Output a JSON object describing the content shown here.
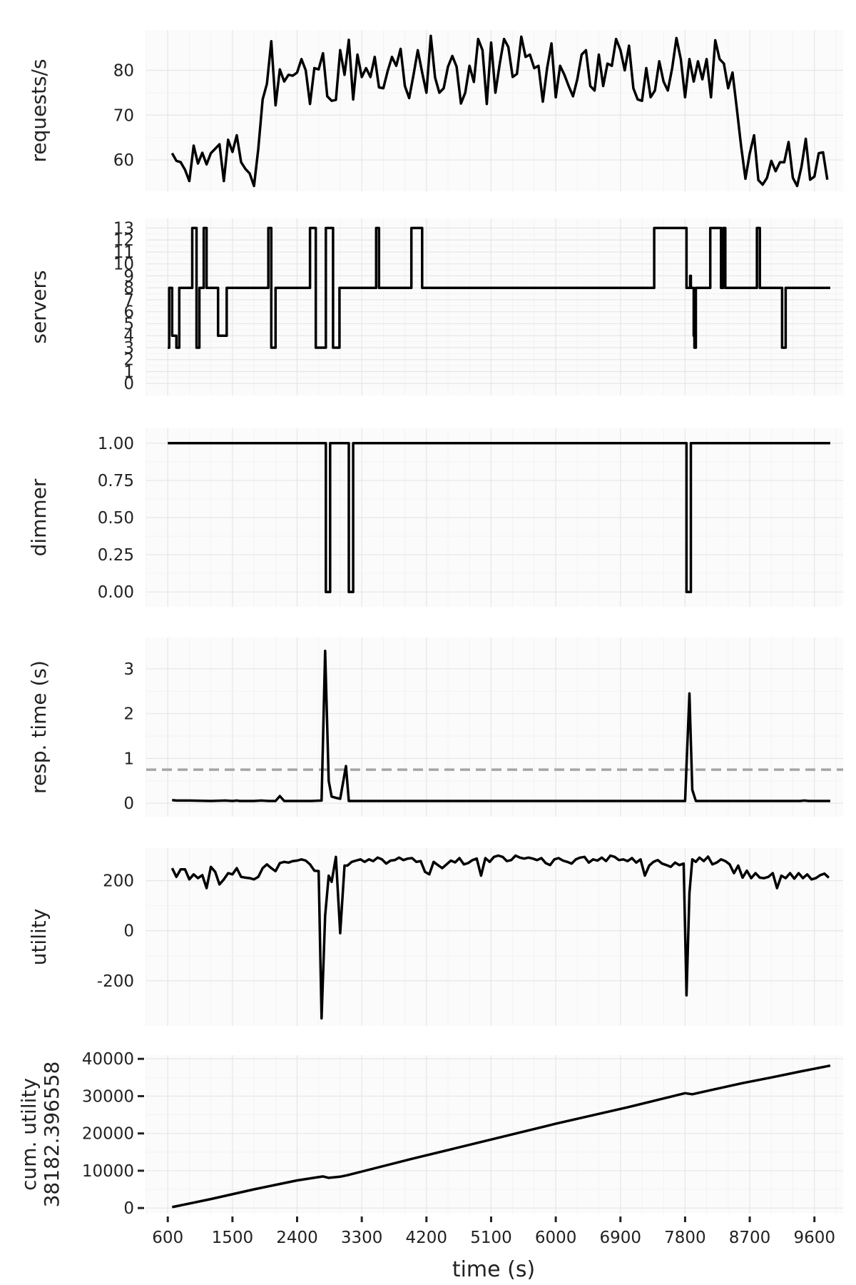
{
  "chart_data": {
    "type": "line",
    "xlabel": "time (s)",
    "x_ticks": [
      600,
      1500,
      2400,
      3300,
      4200,
      5100,
      6000,
      6900,
      7800,
      8700,
      9600
    ],
    "xlim": [
      300,
      10000
    ],
    "panels": [
      {
        "id": "requests",
        "ylabel": "requests/s",
        "ylim": [
          53,
          89
        ],
        "y_ticks": [
          60,
          70,
          80
        ],
        "y_tick_labels": [
          "60",
          "70",
          "80"
        ],
        "step": false,
        "x": [
          660,
          720,
          780,
          840,
          900,
          960,
          1020,
          1080,
          1140,
          1200,
          1260,
          1320,
          1380,
          1440,
          1500,
          1560,
          1620,
          1680,
          1740,
          1800,
          1860,
          1920,
          1980,
          2040,
          2100,
          2160,
          2220,
          2280,
          2340,
          2400,
          2460,
          2520,
          2580,
          2640,
          2700,
          2760,
          2820,
          2880,
          2940,
          3000,
          3060,
          3120,
          3180,
          3240,
          3300,
          3360,
          3420,
          3480,
          3540,
          3600,
          3660,
          3720,
          3780,
          3840,
          3900,
          3960,
          4020,
          4080,
          4140,
          4200,
          4260,
          4320,
          4380,
          4440,
          4500,
          4560,
          4620,
          4680,
          4740,
          4800,
          4860,
          4920,
          4980,
          5040,
          5100,
          5160,
          5220,
          5280,
          5340,
          5400,
          5460,
          5520,
          5580,
          5640,
          5700,
          5760,
          5820,
          5880,
          5940,
          6000,
          6060,
          6120,
          6180,
          6240,
          6300,
          6360,
          6420,
          6480,
          6540,
          6600,
          6660,
          6720,
          6780,
          6840,
          6900,
          6960,
          7020,
          7080,
          7140,
          7200,
          7260,
          7320,
          7380,
          7440,
          7500,
          7560,
          7620,
          7680,
          7740,
          7800,
          7860,
          7920,
          7980,
          8040,
          8100,
          8160,
          8220,
          8280,
          8340,
          8400,
          8460,
          8520,
          8580,
          8640,
          8700,
          8760,
          8820,
          8880,
          8940,
          9000,
          9060,
          9120,
          9180,
          9240,
          9300,
          9360,
          9420,
          9480,
          9540,
          9600,
          9660,
          9720,
          9780
        ],
        "values": [
          61.5,
          59.8,
          59.5,
          57.8,
          55.3,
          63.2,
          59.2,
          61.6,
          59.0,
          61.5,
          62.5,
          63.5,
          55.3,
          64.5,
          61.8,
          65.5,
          59.5,
          58.0,
          57.0,
          54.2,
          62.5,
          73.5,
          77.0,
          86.5,
          72.2,
          80.2,
          77.5,
          79.0,
          78.8,
          79.5,
          82.5,
          80.0,
          72.5,
          80.5,
          80.2,
          83.8,
          74.2,
          73.2,
          73.4,
          84.5,
          79.0,
          86.8,
          73.5,
          83.5,
          78.5,
          80.5,
          78.5,
          83.0,
          76.2,
          76.0,
          79.8,
          83.0,
          81.0,
          84.8,
          76.5,
          73.8,
          79.0,
          84.5,
          79.5,
          75.0,
          87.7,
          78.4,
          75.0,
          76.0,
          80.8,
          83.2,
          80.8,
          72.6,
          75.0,
          81.0,
          77.4,
          87.0,
          84.5,
          72.5,
          86.2,
          75.0,
          81.5,
          87.0,
          85.2,
          78.5,
          79.2,
          87.5,
          83.0,
          83.5,
          80.5,
          81.0,
          73.0,
          80.5,
          86.0,
          74.0,
          81.0,
          79.0,
          76.5,
          74.2,
          78.0,
          83.5,
          84.5,
          76.5,
          75.5,
          83.5,
          76.5,
          81.5,
          81.0,
          87.0,
          84.5,
          80.0,
          85.5,
          76.0,
          73.5,
          73.2,
          80.5,
          74.0,
          75.5,
          82.0,
          77.5,
          75.5,
          80.5,
          87.2,
          82.5,
          74.0,
          82.5,
          77.5,
          82.0,
          78.0,
          82.5,
          74.0,
          86.7,
          82.5,
          81.5,
          76.0,
          79.5,
          71.5,
          63.0,
          55.8,
          61.5,
          65.5,
          55.5,
          54.5,
          56.0,
          59.8,
          57.5,
          59.5,
          59.5,
          64.0,
          56.0,
          54.2,
          58.5,
          64.7,
          55.6,
          56.3,
          61.5,
          61.7,
          55.6
        ]
      },
      {
        "id": "servers",
        "ylabel": "servers",
        "ylim": [
          -1,
          13.8
        ],
        "y_ticks": [
          0,
          1,
          2,
          3,
          4,
          5,
          6,
          7,
          8,
          9,
          10,
          11,
          12,
          13
        ],
        "y_tick_labels": [
          "0",
          "1",
          "2",
          "3",
          "4",
          "5",
          "6",
          "7",
          "8",
          "9",
          "10",
          "11",
          "12",
          "13"
        ],
        "step": true,
        "x": [
          600,
          620,
          660,
          720,
          760,
          800,
          940,
          1000,
          1040,
          1100,
          1140,
          1180,
          1260,
          1300,
          1420,
          1460,
          1520,
          1820,
          1960,
          2000,
          2040,
          2100,
          2220,
          2300,
          2580,
          2660,
          2700,
          2720,
          2800,
          2900,
          2940,
          2990,
          3000,
          3050,
          3120,
          3200,
          3500,
          3540,
          3580,
          3590,
          3970,
          3990,
          4140,
          4200,
          4220,
          4290,
          4520,
          4580,
          5100,
          5160,
          5170,
          7320,
          7370,
          7820,
          7870,
          7880,
          7920,
          7930,
          7950,
          7990,
          8020,
          8060,
          8070,
          8120,
          8150,
          8300,
          8330,
          8360,
          8400,
          8440,
          8480,
          8500,
          8520,
          8560,
          8580,
          8600,
          8800,
          8840,
          8860,
          8870,
          9000,
          9040,
          9080,
          9100,
          9150,
          9200,
          9240,
          9260,
          9280,
          9290,
          9730,
          9820
        ],
        "values": [
          3,
          8,
          4,
          3,
          8,
          8,
          13,
          3,
          8,
          13,
          8,
          8,
          8,
          4,
          8,
          8,
          8,
          8,
          8,
          13,
          3,
          8,
          8,
          8,
          13,
          3,
          3,
          3,
          13,
          3,
          3,
          8,
          8,
          8,
          8,
          8,
          13,
          8,
          8,
          8,
          8,
          13,
          8,
          8,
          8,
          8,
          8,
          8,
          8,
          8,
          8,
          8,
          13,
          8,
          9,
          8,
          4,
          3,
          8,
          8,
          8,
          8,
          8,
          8,
          13,
          8,
          13,
          8,
          8,
          8,
          8,
          8,
          8,
          8,
          8,
          8,
          13,
          8,
          8,
          8,
          8,
          8,
          8,
          8,
          3,
          8,
          8,
          8,
          8,
          8,
          8,
          8
        ]
      },
      {
        "id": "dimmer",
        "ylabel": "dimmer",
        "ylim": [
          -0.1,
          1.1
        ],
        "y_ticks": [
          0,
          0.25,
          0.5,
          0.75,
          1.0
        ],
        "y_tick_labels": [
          "0.00",
          "0.25",
          "0.50",
          "0.75",
          "1.00"
        ],
        "step": true,
        "x": [
          600,
          2800,
          2860,
          3120,
          3180,
          7820,
          7880,
          9820
        ],
        "values": [
          1,
          0,
          1,
          0,
          1,
          0,
          1,
          1
        ]
      },
      {
        "id": "resp",
        "ylabel": "resp. time (s)",
        "ylim": [
          -0.3,
          3.7
        ],
        "y_ticks": [
          0,
          1,
          2,
          3
        ],
        "y_tick_labels": [
          "0",
          "1",
          "2",
          "3"
        ],
        "step": false,
        "threshold": 0.75,
        "x": [
          660,
          720,
          900,
          1200,
          1400,
          1500,
          1560,
          1600,
          1700,
          1800,
          1900,
          2000,
          2100,
          2160,
          2220,
          2400,
          2600,
          2740,
          2790,
          2840,
          2880,
          2940,
          3000,
          3080,
          3120,
          3160,
          4000,
          5000,
          6000,
          7000,
          7700,
          7800,
          7860,
          7900,
          7950,
          8200,
          9000,
          9400,
          9460,
          9520,
          9820
        ],
        "values": [
          0.07,
          0.06,
          0.06,
          0.05,
          0.06,
          0.05,
          0.06,
          0.05,
          0.05,
          0.05,
          0.06,
          0.05,
          0.05,
          0.16,
          0.05,
          0.05,
          0.05,
          0.06,
          3.4,
          0.5,
          0.15,
          0.12,
          0.1,
          0.83,
          0.05,
          0.05,
          0.05,
          0.05,
          0.05,
          0.05,
          0.05,
          0.05,
          2.45,
          0.3,
          0.05,
          0.05,
          0.05,
          0.05,
          0.06,
          0.05,
          0.05
        ]
      },
      {
        "id": "utility",
        "ylabel": "utility",
        "ylim": [
          -380,
          330
        ],
        "y_ticks": [
          -200,
          0,
          200
        ],
        "y_tick_labels": [
          "-200",
          "0",
          "200"
        ],
        "step": false,
        "x": [
          660,
          720,
          780,
          840,
          900,
          960,
          1020,
          1080,
          1140,
          1200,
          1260,
          1320,
          1380,
          1440,
          1500,
          1560,
          1620,
          1680,
          1740,
          1800,
          1860,
          1920,
          1980,
          2040,
          2100,
          2160,
          2220,
          2280,
          2340,
          2400,
          2460,
          2520,
          2580,
          2640,
          2700,
          2740,
          2790,
          2840,
          2880,
          2940,
          3000,
          3060,
          3100,
          3160,
          3220,
          3280,
          3340,
          3400,
          3460,
          3520,
          3580,
          3640,
          3700,
          3760,
          3820,
          3880,
          3940,
          4000,
          4060,
          4120,
          4180,
          4240,
          4300,
          4360,
          4420,
          4480,
          4540,
          4600,
          4660,
          4720,
          4780,
          4840,
          4900,
          4960,
          5020,
          5080,
          5140,
          5200,
          5260,
          5320,
          5380,
          5440,
          5500,
          5560,
          5620,
          5680,
          5740,
          5800,
          5860,
          5920,
          5980,
          6040,
          6100,
          6160,
          6220,
          6280,
          6340,
          6400,
          6460,
          6520,
          6580,
          6640,
          6700,
          6760,
          6820,
          6880,
          6940,
          7000,
          7060,
          7120,
          7180,
          7240,
          7300,
          7360,
          7420,
          7480,
          7540,
          7600,
          7660,
          7720,
          7780,
          7820,
          7860,
          7900,
          7950,
          8000,
          8060,
          8120,
          8180,
          8240,
          8300,
          8360,
          8420,
          8480,
          8540,
          8600,
          8660,
          8720,
          8780,
          8840,
          8900,
          8960,
          9020,
          9080,
          9140,
          9200,
          9260,
          9320,
          9380,
          9440,
          9500,
          9560,
          9620,
          9680,
          9740,
          9800
        ],
        "values": [
          250,
          215,
          245,
          245,
          205,
          225,
          210,
          222,
          170,
          255,
          235,
          185,
          205,
          230,
          225,
          250,
          215,
          212,
          210,
          205,
          215,
          250,
          265,
          250,
          238,
          270,
          275,
          272,
          278,
          280,
          285,
          280,
          265,
          240,
          238,
          -350,
          60,
          220,
          195,
          295,
          -10,
          260,
          260,
          275,
          280,
          285,
          275,
          285,
          278,
          292,
          285,
          268,
          280,
          282,
          292,
          282,
          288,
          290,
          275,
          278,
          235,
          225,
          275,
          262,
          250,
          265,
          280,
          273,
          290,
          265,
          270,
          282,
          288,
          220,
          290,
          275,
          295,
          300,
          295,
          278,
          282,
          300,
          292,
          288,
          292,
          288,
          282,
          290,
          270,
          262,
          285,
          290,
          280,
          275,
          268,
          285,
          292,
          295,
          272,
          285,
          280,
          292,
          278,
          300,
          295,
          282,
          285,
          278,
          290,
          272,
          285,
          220,
          260,
          275,
          282,
          268,
          262,
          255,
          272,
          262,
          268,
          -258,
          150,
          285,
          275,
          292,
          278,
          296,
          265,
          272,
          285,
          278,
          265,
          230,
          260,
          212,
          240,
          210,
          230,
          212,
          210,
          215,
          230,
          170,
          220,
          210,
          230,
          208,
          230,
          210,
          225,
          205,
          210,
          222,
          228,
          212
        ]
      },
      {
        "id": "cum",
        "ylabel": "cum. utility",
        "ylabel_line2": "38182.396558",
        "ylim": [
          -1500,
          41000
        ],
        "y_ticks": [
          0,
          10000,
          20000,
          30000,
          40000
        ],
        "y_tick_labels": [
          "0",
          "10000",
          "20000",
          "30000",
          "40000"
        ],
        "step": false,
        "x": [
          660,
          1200,
          1800,
          2400,
          2760,
          2840,
          3000,
          3100,
          4000,
          5000,
          6000,
          7000,
          7800,
          7900,
          8200,
          8600,
          9000,
          9400,
          9820
        ],
        "values": [
          250,
          2400,
          5000,
          7400,
          8480,
          8100,
          8400,
          8800,
          13200,
          17900,
          22600,
          27000,
          30800,
          30500,
          31800,
          33500,
          35000,
          36600,
          38180
        ]
      }
    ]
  }
}
